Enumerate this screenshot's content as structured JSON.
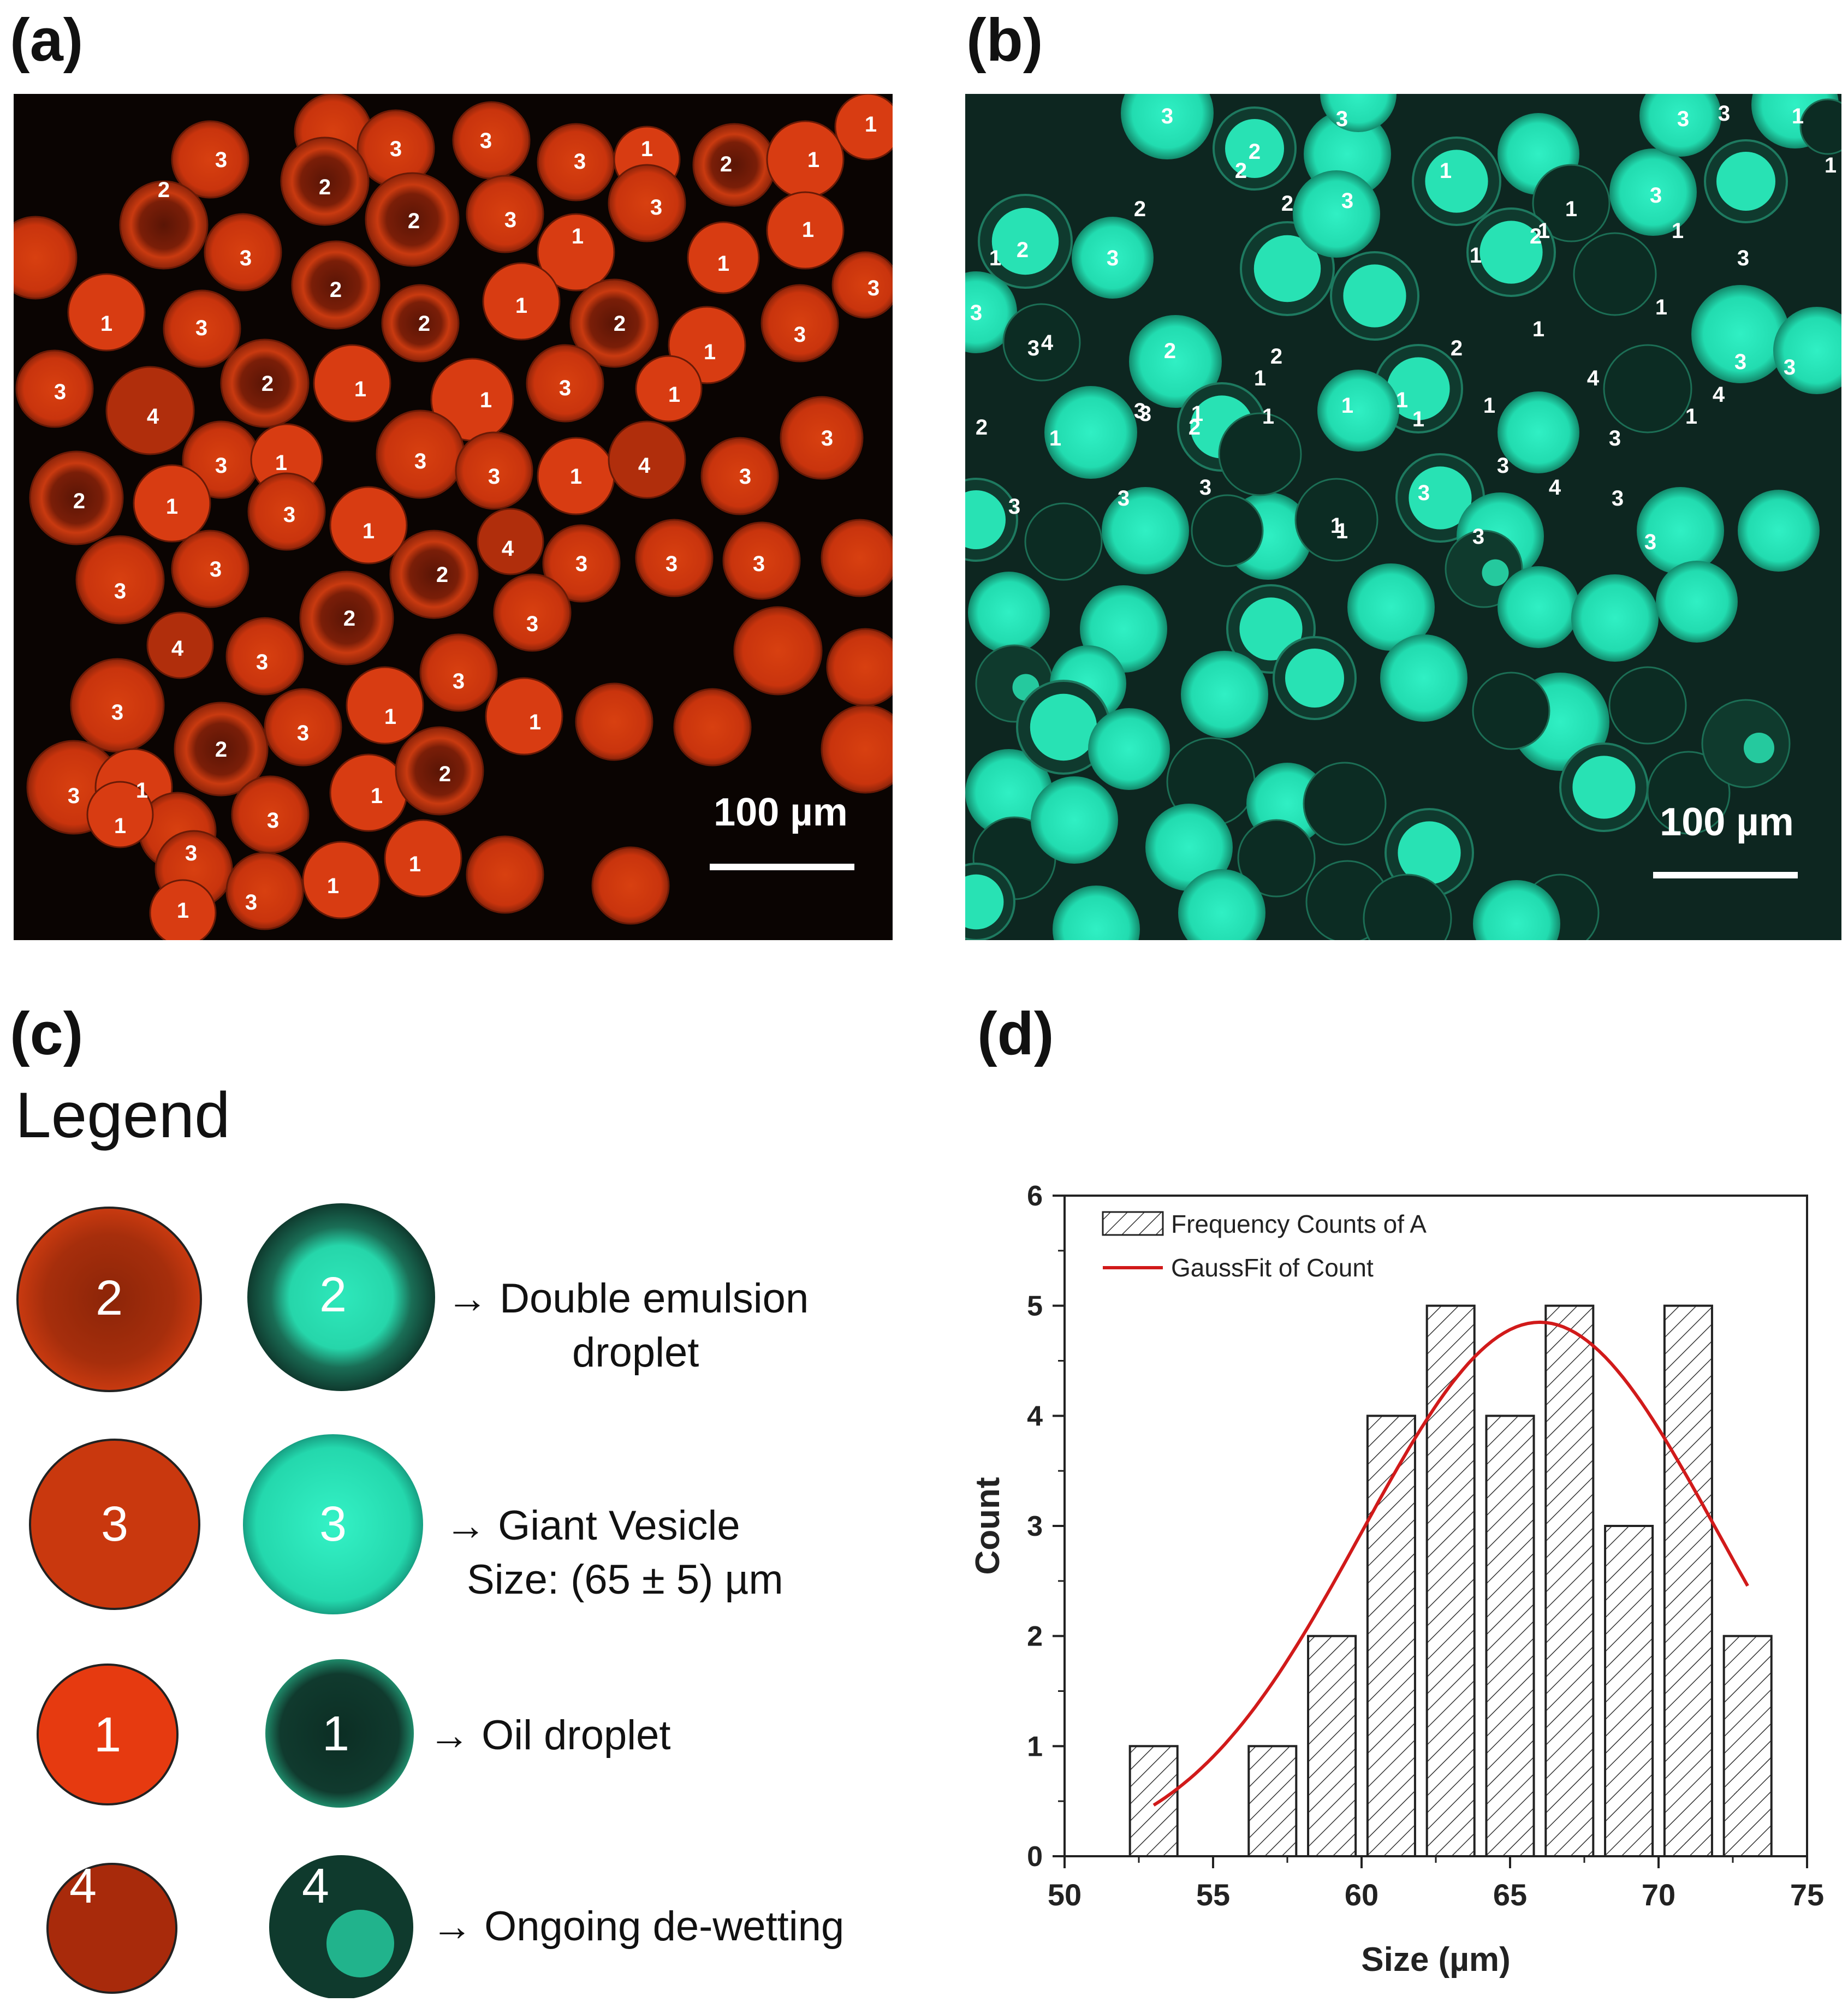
{
  "panels": {
    "a": "(a)",
    "b": "(b)",
    "c": "(c)",
    "d": "(d)"
  },
  "scale_bar": "100 µm",
  "colors": {
    "red_bg": "#0a0402",
    "red_drop": "#d0360f",
    "red_dark": "#7a1e08",
    "green_bg": "#0d2620",
    "green_drop": "#27e3b6",
    "green_dark": "#0e3a2e",
    "fit": "#d11a1a"
  },
  "legend": {
    "title": "Legend",
    "rows": [
      {
        "num": "2",
        "text1": "→ Double emulsion",
        "text2": "droplet"
      },
      {
        "num": "3",
        "text1": "→ Giant Vesicle",
        "text2": "Size: (65 ± 5) µm"
      },
      {
        "num": "1",
        "text1": "→ Oil droplet",
        "text2": ""
      },
      {
        "num": "4",
        "text1": "→ Ongoing de-wetting",
        "text2": ""
      }
    ]
  },
  "chart_data": {
    "type": "bar",
    "xlabel": "Size (µm)",
    "ylabel": "Count",
    "xlim": [
      50,
      75
    ],
    "ylim": [
      0,
      6
    ],
    "xticks": [
      "50",
      "55",
      "60",
      "65",
      "70",
      "75"
    ],
    "yticks": [
      "0",
      "1",
      "2",
      "3",
      "4",
      "5",
      "6"
    ],
    "bins": [
      {
        "center": 53,
        "count": 1
      },
      {
        "center": 57,
        "count": 1
      },
      {
        "center": 59,
        "count": 2
      },
      {
        "center": 61,
        "count": 4
      },
      {
        "center": 63,
        "count": 5
      },
      {
        "center": 65,
        "count": 4
      },
      {
        "center": 67,
        "count": 5
      },
      {
        "center": 69,
        "count": 3
      },
      {
        "center": 71,
        "count": 5
      },
      {
        "center": 73,
        "count": 2
      }
    ],
    "bin_width": 1.6,
    "legend": [
      "Frequency Counts of A",
      "GaussFit of Count"
    ],
    "fit": {
      "mean": 66.0,
      "sigma": 6.0,
      "amplitude": 4.85,
      "x_start": 53,
      "x_end": 73
    }
  }
}
